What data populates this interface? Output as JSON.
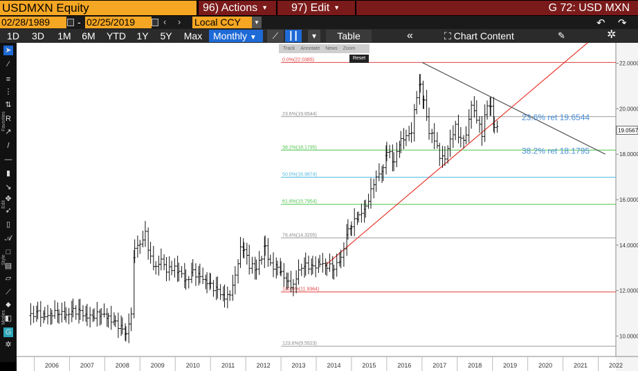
{
  "header": {
    "ticker": "USDMXN Equity",
    "actions_num": "96)",
    "actions_label": "Actions",
    "edit_num": "97)",
    "edit_label": "Edit",
    "graph_title": "G 72: USD MXN"
  },
  "range": {
    "start_date": "02/28/1989",
    "end_date": "02/25/2019",
    "separator": "-",
    "currency": "Local CCY"
  },
  "periods": [
    "1D",
    "3D",
    "1M",
    "6M",
    "YTD",
    "1Y",
    "5Y",
    "Max"
  ],
  "frequency": "Monthly",
  "toolbar": {
    "table_label": "Table",
    "chart_content_label": "Chart Content"
  },
  "left_toolbar_labels": [
    "Favorites",
    "Edit",
    "Style",
    "Modes"
  ],
  "mini_toolbar": {
    "items": [
      "Track",
      "Annotate",
      "News",
      "Zoom"
    ],
    "reset": "Reset"
  },
  "colors": {
    "ticker_bg": "#f5a623",
    "menu_bg": "#7b1a1a",
    "active_period": "#1e6ad6",
    "fib_extreme": "#e04040",
    "fib_382": "#4ec34e",
    "fib_50": "#4fb9e0",
    "trend_up": "#e8352a",
    "trend_down": "#555555",
    "annotation_text": "#4a90d9"
  },
  "chart_data": {
    "type": "line",
    "style": "monthly OHLC bars",
    "x_ticks": [
      "2006",
      "2007",
      "2008",
      "2009",
      "2010",
      "2011",
      "2012",
      "2013",
      "2014",
      "2015",
      "2016",
      "2017",
      "2018",
      "2019",
      "2020",
      "2021",
      "2022"
    ],
    "y_ticks": [
      "10.0000",
      "12.0000",
      "14.0000",
      "16.0000",
      "18.0000",
      "20.0000",
      "22.0000"
    ],
    "ylim": [
      9.1,
      22.9
    ],
    "last_price": "19.0567",
    "fib_levels": [
      {
        "label": "0.0%(22.0385)",
        "value": 22.0385,
        "color": "#e04040"
      },
      {
        "label": "23.6%(19.6544)",
        "value": 19.6544,
        "color": "#999999"
      },
      {
        "label": "38.2%(18.1795)",
        "value": 18.1795,
        "color": "#4ec34e"
      },
      {
        "label": "50.0%(16.9874)",
        "value": 16.9874,
        "color": "#4fb9e0"
      },
      {
        "label": "61.8%(15.7954)",
        "value": 15.7954,
        "color": "#4ec34e"
      },
      {
        "label": "76.4%(14.3205)",
        "value": 14.3205,
        "color": "#999999"
      },
      {
        "label": "100.0%(11.9364)",
        "value": 11.9364,
        "color": "#e04040"
      },
      {
        "label": "123.6%(9.5523)",
        "value": 9.5523,
        "color": "#999999"
      }
    ],
    "annotations": [
      {
        "text": "23.6% ret 19.6544",
        "value": 19.6544
      },
      {
        "text": "38.2% ret 18.1795",
        "value": 18.1795
      }
    ],
    "trendlines": [
      {
        "name": "up",
        "from": [
          2014.25,
          13.1
        ],
        "to": [
          2022.0,
          23.3
        ]
      },
      {
        "name": "down",
        "from": [
          2017.0,
          22.0385
        ],
        "to": [
          2022.2,
          18.0
        ]
      }
    ],
    "series_points": [
      [
        2005.9,
        10.9
      ],
      [
        2006.1,
        11.0
      ],
      [
        2006.3,
        10.85
      ],
      [
        2006.5,
        11.0
      ],
      [
        2006.7,
        11.05
      ],
      [
        2006.9,
        10.9
      ],
      [
        2007.1,
        11.1
      ],
      [
        2007.3,
        11.05
      ],
      [
        2007.5,
        10.85
      ],
      [
        2007.7,
        10.9
      ],
      [
        2007.9,
        11.0
      ],
      [
        2008.1,
        10.8
      ],
      [
        2008.3,
        10.55
      ],
      [
        2008.5,
        10.3
      ],
      [
        2008.6,
        10.05
      ],
      [
        2008.75,
        11.0
      ],
      [
        2008.85,
        13.9
      ],
      [
        2009.0,
        14.0
      ],
      [
        2009.15,
        14.5
      ],
      [
        2009.3,
        13.4
      ],
      [
        2009.45,
        13.0
      ],
      [
        2009.6,
        13.4
      ],
      [
        2009.75,
        12.9
      ],
      [
        2009.9,
        13.0
      ],
      [
        2010.1,
        12.9
      ],
      [
        2010.3,
        12.4
      ],
      [
        2010.5,
        12.8
      ],
      [
        2010.7,
        12.6
      ],
      [
        2010.9,
        12.4
      ],
      [
        2011.0,
        12.2
      ],
      [
        2011.2,
        12.0
      ],
      [
        2011.4,
        11.7
      ],
      [
        2011.55,
        11.8
      ],
      [
        2011.7,
        12.6
      ],
      [
        2011.85,
        13.8
      ],
      [
        2011.95,
        13.9
      ],
      [
        2012.1,
        13.1
      ],
      [
        2012.3,
        13.0
      ],
      [
        2012.45,
        13.5
      ],
      [
        2012.55,
        13.9
      ],
      [
        2012.7,
        13.1
      ],
      [
        2012.9,
        13.0
      ],
      [
        2013.0,
        12.8
      ],
      [
        2013.2,
        12.3
      ],
      [
        2013.35,
        12.2
      ],
      [
        2013.5,
        12.9
      ],
      [
        2013.7,
        13.1
      ],
      [
        2013.9,
        13.0
      ],
      [
        2014.1,
        13.2
      ],
      [
        2014.3,
        13.1
      ],
      [
        2014.5,
        13.0
      ],
      [
        2014.7,
        13.4
      ],
      [
        2014.9,
        14.6
      ],
      [
        2015.0,
        14.9
      ],
      [
        2015.2,
        15.3
      ],
      [
        2015.4,
        15.6
      ],
      [
        2015.55,
        16.4
      ],
      [
        2015.7,
        17.0
      ],
      [
        2015.9,
        17.3
      ],
      [
        2016.0,
        18.2
      ],
      [
        2016.2,
        17.7
      ],
      [
        2016.4,
        18.6
      ],
      [
        2016.55,
        18.8
      ],
      [
        2016.7,
        19.0
      ],
      [
        2016.85,
        20.6
      ],
      [
        2016.95,
        21.0
      ],
      [
        2017.05,
        20.4
      ],
      [
        2017.2,
        19.0
      ],
      [
        2017.35,
        18.7
      ],
      [
        2017.5,
        17.9
      ],
      [
        2017.65,
        17.8
      ],
      [
        2017.8,
        18.6
      ],
      [
        2017.95,
        19.2
      ],
      [
        2018.1,
        18.6
      ],
      [
        2018.25,
        18.8
      ],
      [
        2018.4,
        20.2
      ],
      [
        2018.55,
        19.6
      ],
      [
        2018.7,
        18.9
      ],
      [
        2018.85,
        20.2
      ],
      [
        2018.95,
        20.0
      ],
      [
        2019.05,
        19.3
      ],
      [
        2019.15,
        19.06
      ]
    ]
  }
}
